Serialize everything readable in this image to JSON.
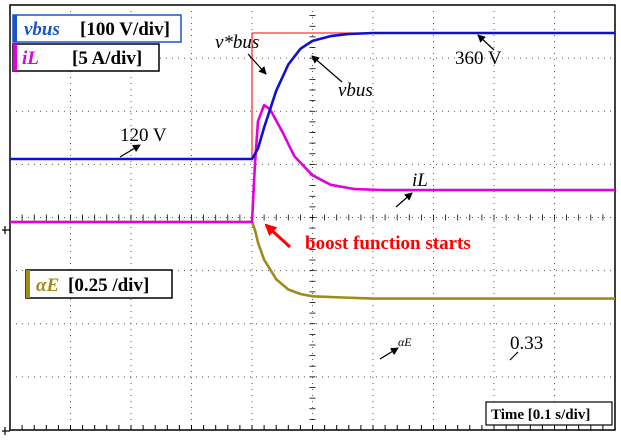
{
  "chart_data": {
    "type": "line",
    "xlabel": "Time [0.1 s/div]",
    "x_unit": "s",
    "xlim": [
      0,
      1.0
    ],
    "divisions": {
      "x": 10,
      "y": 8
    },
    "grid": true,
    "step_time": 0.4,
    "series": [
      {
        "name": "v*bus",
        "channel": "v_bus_ref",
        "unit": "V",
        "color": "#ff3030",
        "points": [
          [
            0,
            120
          ],
          [
            0.4,
            120
          ],
          [
            0.4,
            360
          ],
          [
            1.0,
            360
          ]
        ]
      },
      {
        "name": "vbus",
        "channel": "v_bus",
        "unit": "V",
        "color": "#1010d0",
        "points": [
          [
            0,
            120
          ],
          [
            0.4,
            120
          ],
          [
            0.41,
            140
          ],
          [
            0.42,
            180
          ],
          [
            0.44,
            250
          ],
          [
            0.46,
            300
          ],
          [
            0.48,
            330
          ],
          [
            0.5,
            345
          ],
          [
            0.53,
            354
          ],
          [
            0.56,
            358
          ],
          [
            0.6,
            360
          ],
          [
            1.0,
            360
          ]
        ]
      },
      {
        "name": "iL",
        "channel": "i_L",
        "unit": "A",
        "color": "#e000e0",
        "points": [
          [
            0,
            0
          ],
          [
            0.4,
            0
          ],
          [
            0.405,
            5.5
          ],
          [
            0.41,
            9.5
          ],
          [
            0.42,
            11.0
          ],
          [
            0.43,
            10.6
          ],
          [
            0.45,
            8.5
          ],
          [
            0.47,
            6.2
          ],
          [
            0.5,
            4.4
          ],
          [
            0.53,
            3.5
          ],
          [
            0.57,
            3.1
          ],
          [
            0.62,
            3.0
          ],
          [
            1.0,
            3.0
          ]
        ]
      },
      {
        "name": "αE",
        "channel": "alpha_E",
        "unit": "",
        "color": "#a08a1a",
        "points": [
          [
            0,
            1.0
          ],
          [
            0.4,
            1.0
          ],
          [
            0.405,
            0.93
          ],
          [
            0.41,
            0.82
          ],
          [
            0.42,
            0.67
          ],
          [
            0.44,
            0.5
          ],
          [
            0.46,
            0.41
          ],
          [
            0.48,
            0.37
          ],
          [
            0.5,
            0.35
          ],
          [
            0.55,
            0.34
          ],
          [
            0.6,
            0.33
          ],
          [
            1.0,
            0.33
          ]
        ]
      }
    ],
    "channel_legend": [
      {
        "symbol": "vbus",
        "text": "[100 V/div]",
        "color": "#1a55c8"
      },
      {
        "symbol": "iL",
        "text": "[5 A/div]",
        "color": "#e000e0"
      },
      {
        "symbol": "αE",
        "text": "[0.25 /div]",
        "color": "#a08a1a"
      }
    ],
    "annotations": {
      "v_start": "120 V",
      "v_final": "360 V",
      "alpha_final": "0.33",
      "event": "boost function starts",
      "vbus_ref_label": "v*bus",
      "vbus_label": "vbus",
      "il_label": "iL",
      "alpha_label": "αE"
    }
  }
}
